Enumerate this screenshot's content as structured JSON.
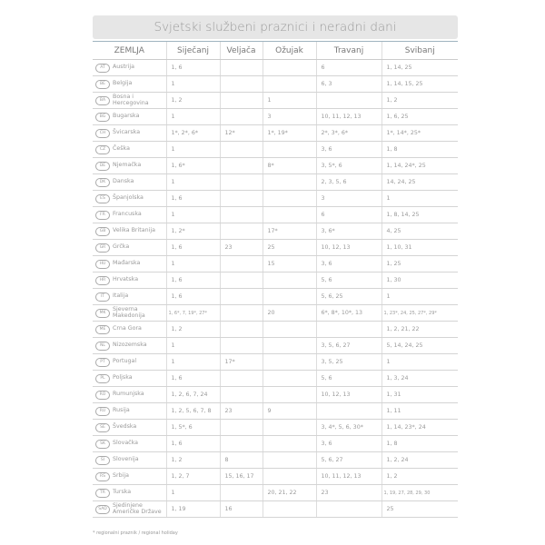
{
  "title": "Svjetski službeni praznici i neradni dani",
  "columns": [
    "ZEMLJA",
    "Siječanj",
    "Veljača",
    "Ožujak",
    "Travanj",
    "Svibanj"
  ],
  "rows": [
    {
      "code": "AT",
      "country": "Austrija",
      "cells": [
        "1, 6",
        "",
        "",
        "6",
        "1, 14, 25"
      ]
    },
    {
      "code": "BE",
      "country": "Belgija",
      "cells": [
        "1",
        "",
        "",
        "6, 3",
        "1, 14, 15, 25"
      ]
    },
    {
      "code": "BA",
      "country": "Bosna i Hercegovina",
      "cells": [
        "1, 2",
        "",
        "1",
        "",
        "1, 2"
      ]
    },
    {
      "code": "BG",
      "country": "Bugarska",
      "cells": [
        "1",
        "",
        "3",
        "10, 11, 12, 13",
        "1, 6, 25"
      ]
    },
    {
      "code": "CH",
      "country": "Švicarska",
      "cells": [
        "1*, 2*, 6*",
        "12*",
        "1*, 19*",
        "2*, 3*, 6*",
        "1*, 14*, 25*"
      ]
    },
    {
      "code": "CZ",
      "country": "Češka",
      "cells": [
        "1",
        "",
        "",
        "3, 6",
        "1, 8"
      ]
    },
    {
      "code": "DE",
      "country": "Njemačka",
      "cells": [
        "1, 6*",
        "",
        "8*",
        "3, 5*, 6",
        "1, 14, 24*, 25"
      ]
    },
    {
      "code": "DK",
      "country": "Danska",
      "cells": [
        "1",
        "",
        "",
        "2, 3, 5, 6",
        "14, 24, 25"
      ]
    },
    {
      "code": "ES",
      "country": "Španjolska",
      "cells": [
        "1, 6",
        "",
        "",
        "3",
        "1"
      ]
    },
    {
      "code": "FR",
      "country": "Francuska",
      "cells": [
        "1",
        "",
        "",
        "6",
        "1, 8, 14, 25"
      ]
    },
    {
      "code": "GB",
      "country": "Velika Britanija",
      "cells": [
        "1, 2*",
        "",
        "17*",
        "3, 6*",
        "4, 25"
      ]
    },
    {
      "code": "GR",
      "country": "Grčka",
      "cells": [
        "1, 6",
        "23",
        "25",
        "10, 12, 13",
        "1, 10, 31"
      ]
    },
    {
      "code": "HU",
      "country": "Mađarska",
      "cells": [
        "1",
        "",
        "15",
        "3, 6",
        "1, 25"
      ]
    },
    {
      "code": "HR",
      "country": "Hrvatska",
      "cells": [
        "1, 6",
        "",
        "",
        "5, 6",
        "1, 30"
      ]
    },
    {
      "code": "IT",
      "country": "Italija",
      "cells": [
        "1, 6",
        "",
        "",
        "5, 6, 25",
        "1"
      ]
    },
    {
      "code": "MK",
      "country": "Sjeverna Makedonija",
      "cells": [
        "1, 6*, 7, 19*, 27*",
        "",
        "20",
        "6*, 8*, 10*, 13",
        "1, 23*, 24, 25, 27*, 29*"
      ]
    },
    {
      "code": "ME",
      "country": "Crna Gora",
      "cells": [
        "1, 2",
        "",
        "",
        "",
        "1, 2, 21, 22"
      ]
    },
    {
      "code": "NL",
      "country": "Nizozemska",
      "cells": [
        "1",
        "",
        "",
        "3, 5, 6, 27",
        "5, 14, 24, 25"
      ]
    },
    {
      "code": "PT",
      "country": "Portugal",
      "cells": [
        "1",
        "17*",
        "",
        "3, 5, 25",
        "1"
      ]
    },
    {
      "code": "PL",
      "country": "Poljska",
      "cells": [
        "1, 6",
        "",
        "",
        "5, 6",
        "1, 3, 24"
      ]
    },
    {
      "code": "RO",
      "country": "Rumunjska",
      "cells": [
        "1, 2, 6, 7, 24",
        "",
        "",
        "10, 12, 13",
        "1, 31"
      ]
    },
    {
      "code": "RU",
      "country": "Rusija",
      "cells": [
        "1, 2, 5, 6, 7, 8",
        "23",
        "9",
        "",
        "1, 11"
      ]
    },
    {
      "code": "SE",
      "country": "Švedska",
      "cells": [
        "1, 5*, 6",
        "",
        "",
        "3, 4*, 5, 6, 30*",
        "1, 14, 23*, 24"
      ]
    },
    {
      "code": "SK",
      "country": "Slovačka",
      "cells": [
        "1, 6",
        "",
        "",
        "3, 6",
        "1, 8"
      ]
    },
    {
      "code": "SI",
      "country": "Slovenija",
      "cells": [
        "1, 2",
        "8",
        "",
        "5, 6, 27",
        "1, 2, 24"
      ]
    },
    {
      "code": "RS",
      "country": "Srbija",
      "cells": [
        "1, 2, 7",
        "15, 16, 17",
        "",
        "10, 11, 12, 13",
        "1, 2"
      ]
    },
    {
      "code": "TR",
      "country": "Turska",
      "cells": [
        "1",
        "",
        "20, 21, 22",
        "23",
        "1, 19, 27, 28, 29, 30"
      ]
    },
    {
      "code": "SAD",
      "country": "Sjedinjene Američke Države",
      "cells": [
        "1, 19",
        "16",
        "",
        "",
        "25"
      ]
    }
  ],
  "footnote": "* regionalni praznik / regional holiday"
}
